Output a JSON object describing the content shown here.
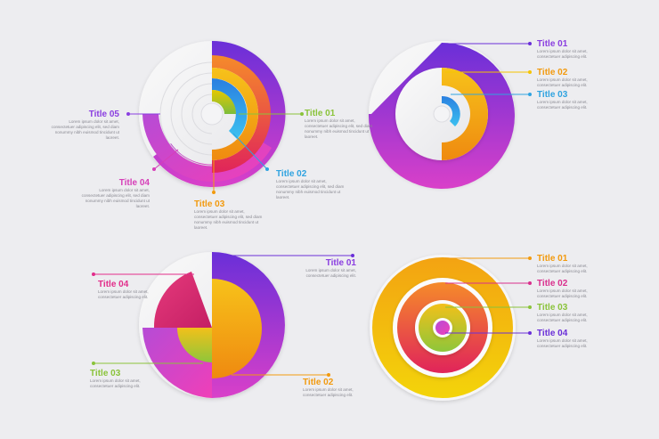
{
  "colors": {
    "purple": "#8a3ee0",
    "violet": "#6a2fd8",
    "magenta": "#d63fb8",
    "pink": "#e22d8a",
    "orange": "#f29a0e",
    "yellow": "#f5c400",
    "green": "#8ac33a",
    "blue": "#3aa0e6",
    "title_blue": "#2fa3e0",
    "title_pink": "#d92f8d"
  },
  "lorem": "Lorem ipsum dolor sit amet, consectetuer adipiscing elit, sed diam nonummy nibh euismod tincidunt ut laoreet.",
  "lorem_short": "Lorem ipsum dolor sit amet, consectetuer adipiscing elit.",
  "chart1": {
    "titles": [
      "Title 01",
      "Title 02",
      "Title 03",
      "Title 04",
      "Title 05"
    ]
  },
  "chart2": {
    "titles": [
      "Title 01",
      "Title 02",
      "Title 03"
    ]
  },
  "chart3": {
    "titles": [
      "Title 01",
      "Title 02",
      "Title 03",
      "Title 04"
    ]
  },
  "chart4": {
    "titles": [
      "Title 01",
      "Title 02",
      "Title 03",
      "Title 04"
    ]
  }
}
